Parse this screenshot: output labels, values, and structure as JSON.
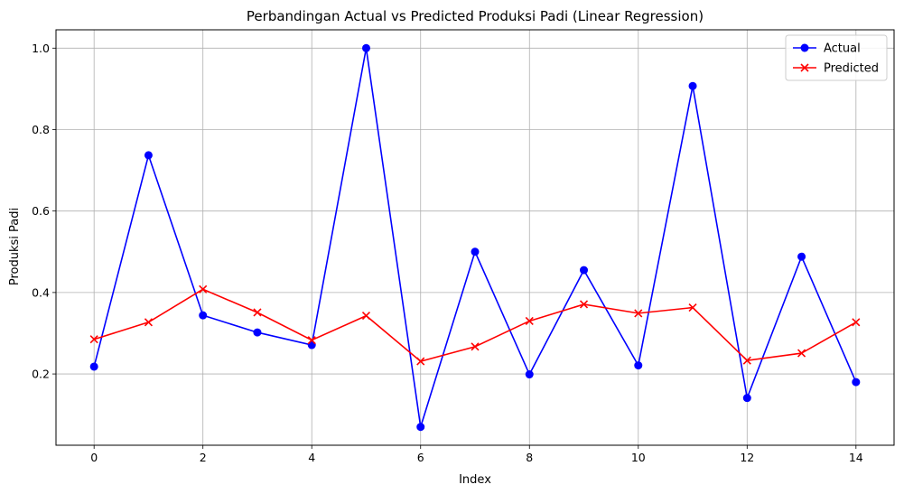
{
  "chart_data": {
    "type": "line",
    "title": "Perbandingan Actual vs Predicted Produksi Padi (Linear Regression)",
    "xlabel": "Index",
    "ylabel": "Produksi Padi",
    "x": [
      0,
      1,
      2,
      3,
      4,
      5,
      6,
      7,
      8,
      9,
      10,
      11,
      12,
      13,
      14
    ],
    "xlim": [
      -0.7,
      14.7
    ],
    "ylim": [
      0.025,
      1.045
    ],
    "x_ticks": [
      "0",
      "2",
      "4",
      "6",
      "8",
      "10",
      "12",
      "14"
    ],
    "y_ticks": [
      "0.2",
      "0.4",
      "0.6",
      "0.8",
      "1.0"
    ],
    "grid": true,
    "legend_position": "top-right",
    "series": [
      {
        "name": "Actual",
        "color": "#0000ff",
        "marker": "circle",
        "values": [
          0.218,
          0.737,
          0.344,
          0.302,
          0.271,
          1.0,
          0.07,
          0.5,
          0.199,
          0.455,
          0.221,
          0.907,
          0.141,
          0.488,
          0.18
        ]
      },
      {
        "name": "Predicted",
        "color": "#ff0000",
        "marker": "x",
        "values": [
          0.285,
          0.327,
          0.408,
          0.351,
          0.283,
          0.343,
          0.231,
          0.267,
          0.33,
          0.371,
          0.349,
          0.363,
          0.233,
          0.251,
          0.327
        ]
      }
    ]
  }
}
